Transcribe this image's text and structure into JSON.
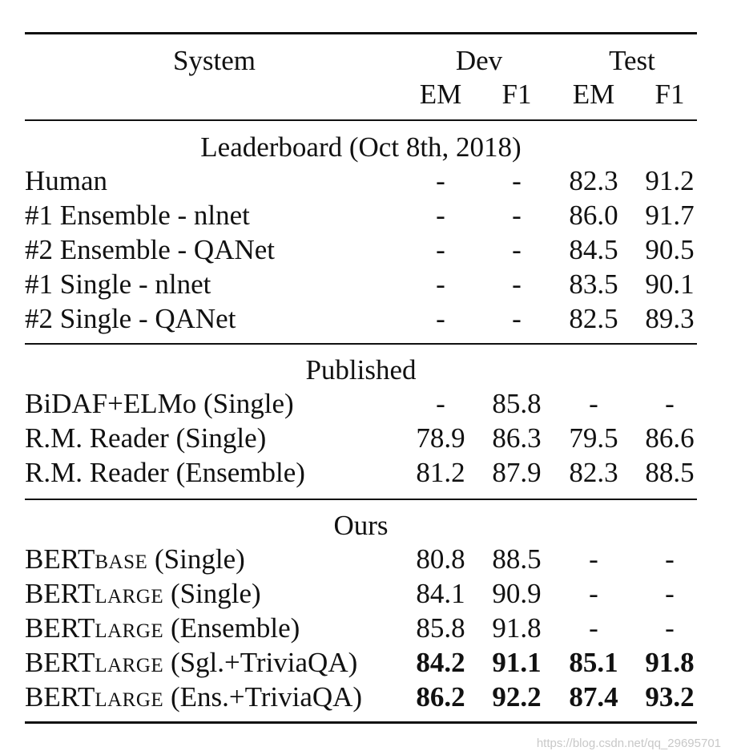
{
  "header": {
    "system": "System",
    "dev": "Dev",
    "test": "Test",
    "em1": "EM",
    "f1_1": "F1",
    "em2": "EM",
    "f1_2": "F1"
  },
  "sections": [
    {
      "title": "Leaderboard (Oct 8th, 2018)",
      "rows": [
        {
          "system": "Human",
          "sub": "",
          "suffix": "",
          "dev_em": "-",
          "dev_f1": "-",
          "test_em": "82.3",
          "test_f1": "91.2",
          "bold": false
        },
        {
          "system": "#1 Ensemble - nlnet",
          "sub": "",
          "suffix": "",
          "dev_em": "-",
          "dev_f1": "-",
          "test_em": "86.0",
          "test_f1": "91.7",
          "bold": false
        },
        {
          "system": "#2 Ensemble - QANet",
          "sub": "",
          "suffix": "",
          "dev_em": "-",
          "dev_f1": "-",
          "test_em": "84.5",
          "test_f1": "90.5",
          "bold": false
        },
        {
          "system": "#1 Single - nlnet",
          "sub": "",
          "suffix": "",
          "dev_em": "-",
          "dev_f1": "-",
          "test_em": "83.5",
          "test_f1": "90.1",
          "bold": false
        },
        {
          "system": "#2 Single - QANet",
          "sub": "",
          "suffix": "",
          "dev_em": "-",
          "dev_f1": "-",
          "test_em": "82.5",
          "test_f1": "89.3",
          "bold": false
        }
      ]
    },
    {
      "title": "Published",
      "rows": [
        {
          "system": "BiDAF+ELMo (Single)",
          "sub": "",
          "suffix": "",
          "dev_em": "-",
          "dev_f1": "85.8",
          "test_em": "-",
          "test_f1": "-",
          "bold": false
        },
        {
          "system": "R.M. Reader (Single)",
          "sub": "",
          "suffix": "",
          "dev_em": "78.9",
          "dev_f1": "86.3",
          "test_em": "79.5",
          "test_f1": "86.6",
          "bold": false
        },
        {
          "system": "R.M. Reader (Ensemble)",
          "sub": "",
          "suffix": "",
          "dev_em": "81.2",
          "dev_f1": "87.9",
          "test_em": "82.3",
          "test_f1": "88.5",
          "bold": false
        }
      ]
    },
    {
      "title": "Ours",
      "rows": [
        {
          "system": "BERT",
          "sub": "BASE",
          "suffix": " (Single)",
          "dev_em": "80.8",
          "dev_f1": "88.5",
          "test_em": "-",
          "test_f1": "-",
          "bold": false
        },
        {
          "system": "BERT",
          "sub": "LARGE",
          "suffix": " (Single)",
          "dev_em": "84.1",
          "dev_f1": "90.9",
          "test_em": "-",
          "test_f1": "-",
          "bold": false
        },
        {
          "system": "BERT",
          "sub": "LARGE",
          "suffix": " (Ensemble)",
          "dev_em": "85.8",
          "dev_f1": "91.8",
          "test_em": "-",
          "test_f1": "-",
          "bold": false
        },
        {
          "system": "BERT",
          "sub": "LARGE",
          "suffix": " (Sgl.+TriviaQA)",
          "dev_em": "84.2",
          "dev_f1": "91.1",
          "test_em": "85.1",
          "test_f1": "91.8",
          "bold": true
        },
        {
          "system": "BERT",
          "sub": "LARGE",
          "suffix": " (Ens.+TriviaQA)",
          "dev_em": "86.2",
          "dev_f1": "92.2",
          "test_em": "87.4",
          "test_f1": "93.2",
          "bold": true
        }
      ]
    }
  ],
  "watermark": "https://blog.csdn.net/qq_29695701"
}
